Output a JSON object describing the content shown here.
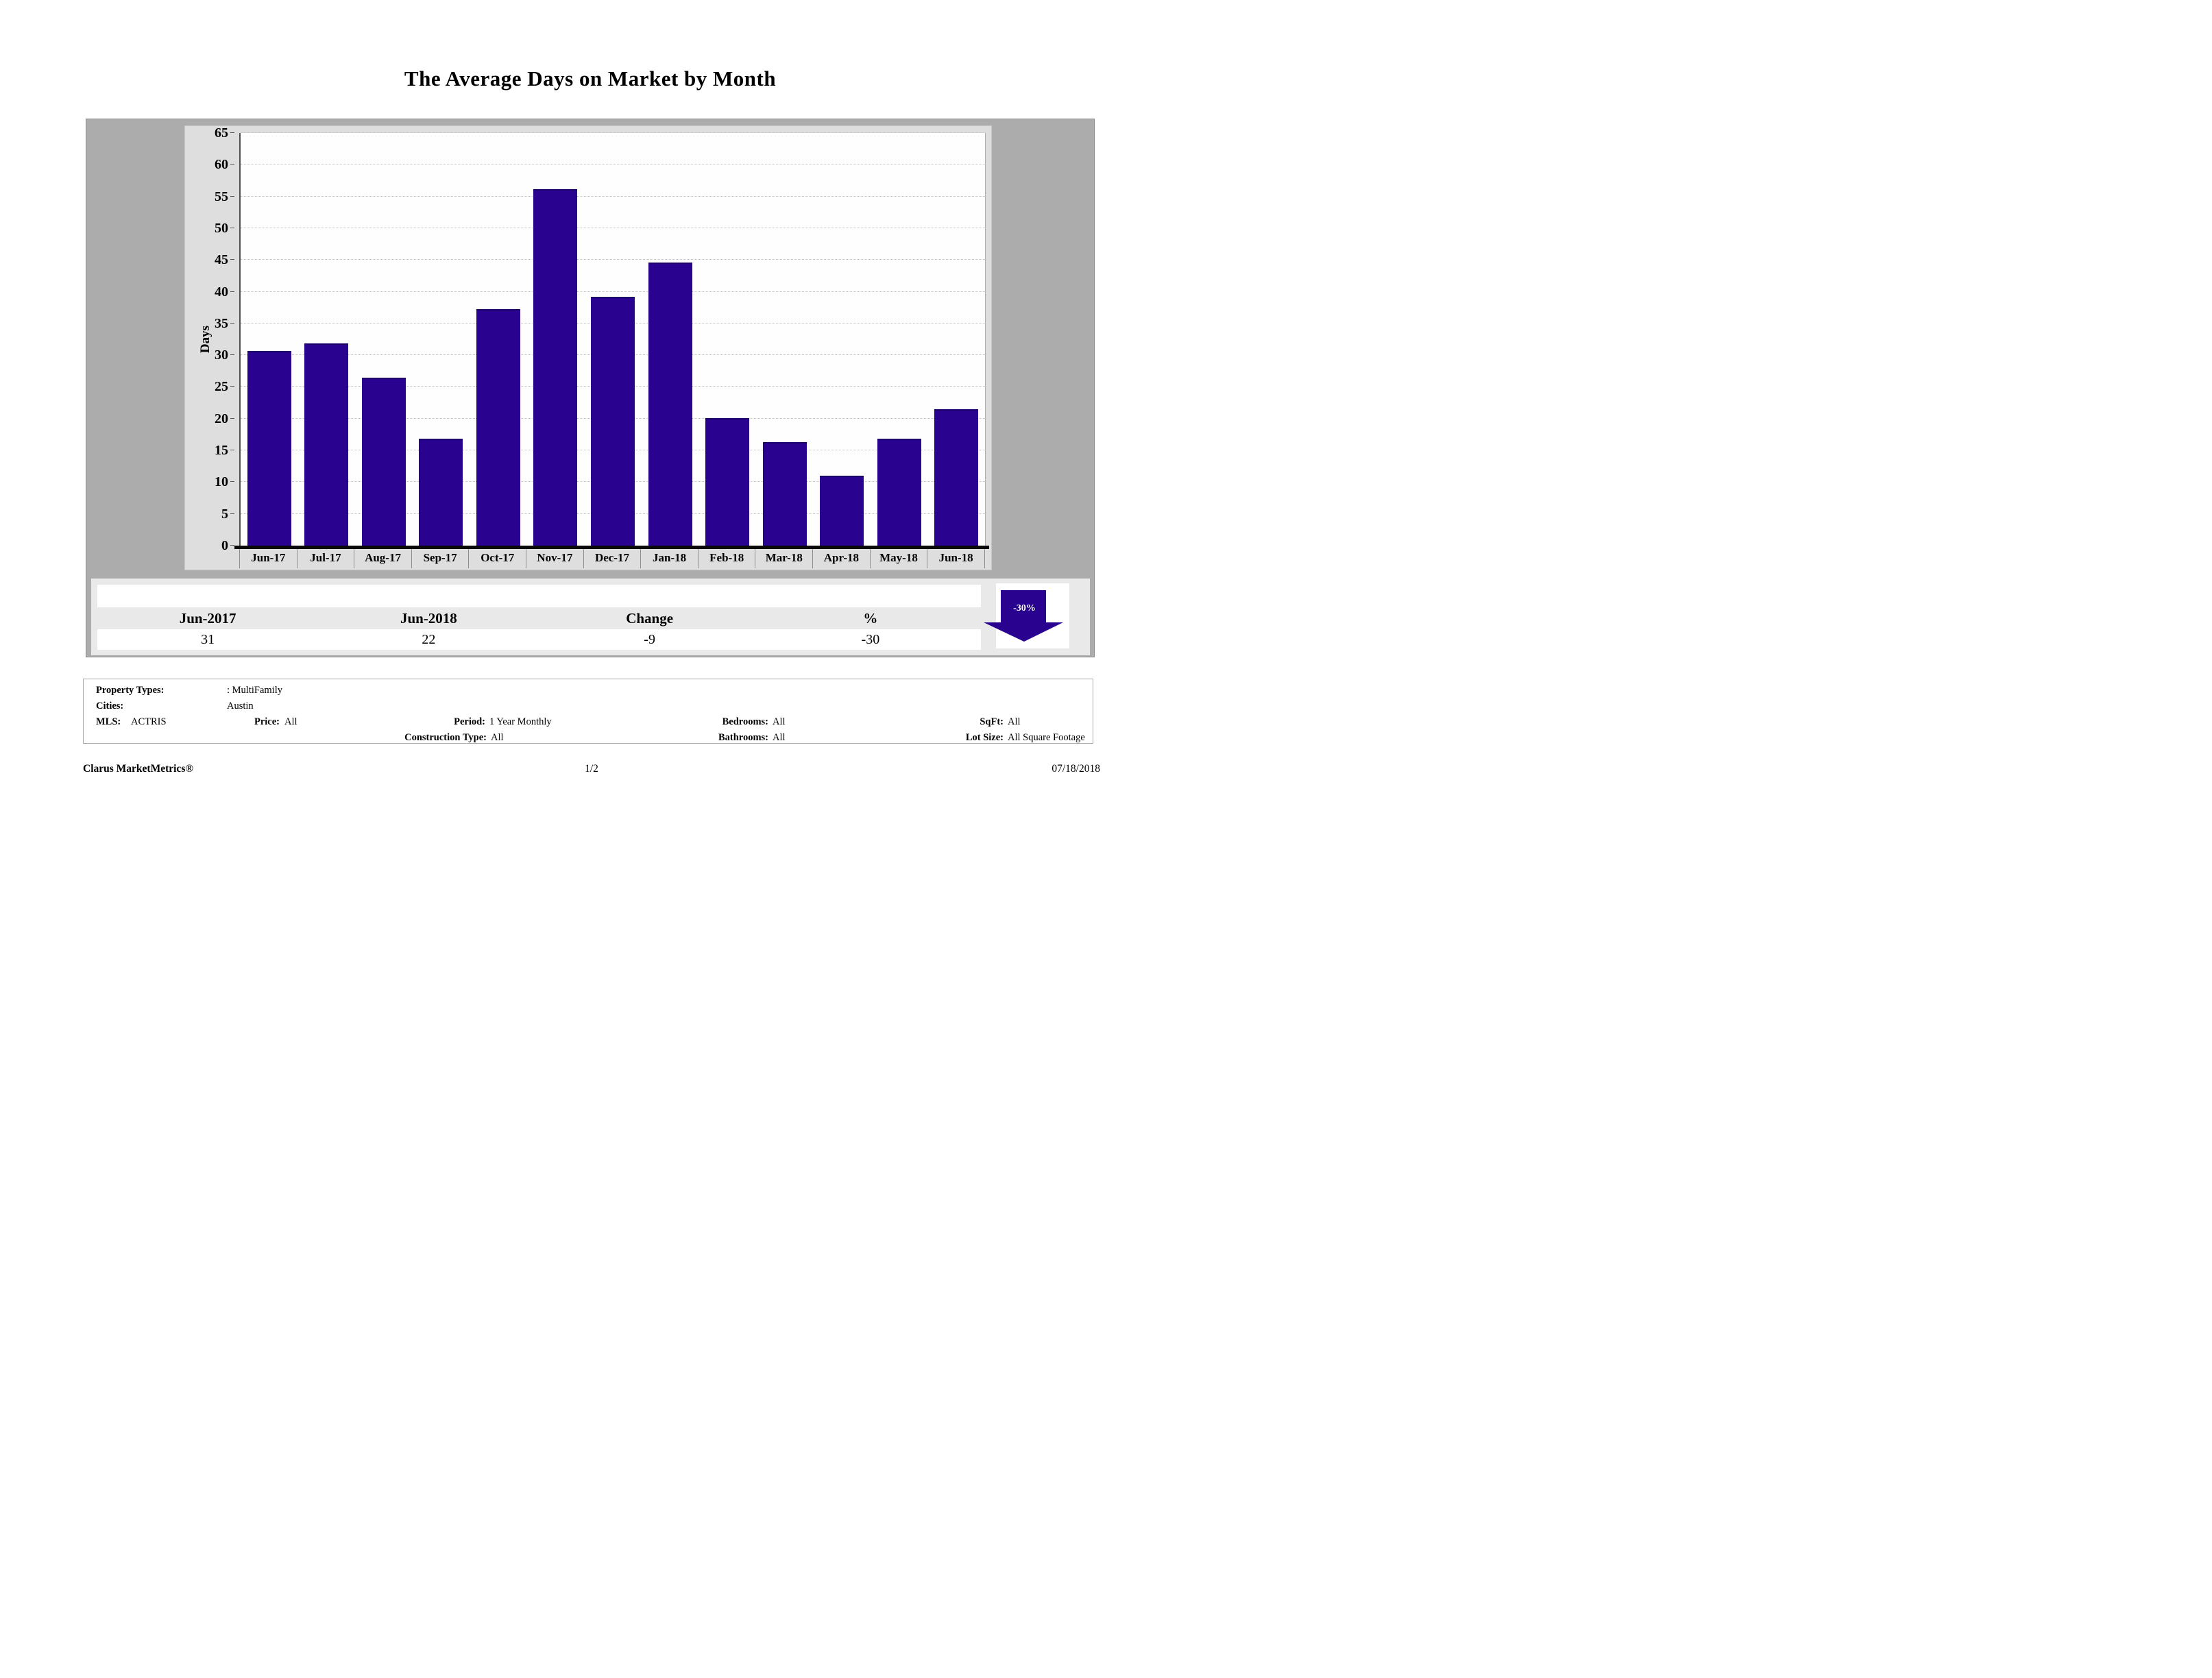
{
  "title": "The Average Days on Market by Month",
  "chart_data": {
    "type": "bar",
    "title": "The Average Days on Market by Month",
    "categories": [
      "Jun-17",
      "Jul-17",
      "Aug-17",
      "Sep-17",
      "Oct-17",
      "Nov-17",
      "Dec-17",
      "Jan-18",
      "Feb-18",
      "Mar-18",
      "Apr-18",
      "May-18",
      "Jun-18"
    ],
    "values": [
      30.7,
      31.8,
      26.5,
      16.8,
      37.2,
      56.2,
      39.2,
      44.6,
      20.1,
      16.3,
      11.0,
      16.8,
      21.5
    ],
    "xlabel": "",
    "ylabel": "Days",
    "ylim": [
      0,
      65
    ],
    "ytick_step": 5,
    "grid": "horizontal-dotted",
    "legend": "none",
    "bar_color": "#2a0290"
  },
  "summary_table": {
    "headers": [
      "Jun-2017",
      "Jun-2018",
      "Change",
      "%"
    ],
    "values": [
      "31",
      "22",
      "-9",
      "-30"
    ]
  },
  "trend_arrow": {
    "label": "-30%",
    "direction": "down",
    "color": "#2a0290"
  },
  "filters": {
    "property_types_label": "Property Types:",
    "property_types_value": ": MultiFamily",
    "cities_label": "Cities:",
    "cities_value": "Austin",
    "mls_label": "MLS:",
    "mls_value": "ACTRIS",
    "price_label": "Price:",
    "price_value": "All",
    "period_label": "Period:",
    "period_value": "1 Year Monthly",
    "bedrooms_label": "Bedrooms:",
    "bedrooms_value": "All",
    "sqft_label": "SqFt:",
    "sqft_value": "All",
    "construction_type_label": "Construction Type:",
    "construction_type_value": "All",
    "bathrooms_label": "Bathrooms:",
    "bathrooms_value": "All",
    "lot_size_label": "Lot Size:",
    "lot_size_value": "All Square Footage"
  },
  "footer": {
    "brand": "Clarus MarketMetrics®",
    "page": "1/2",
    "date": "07/18/2018"
  },
  "colors": {
    "bar": "#2a0290",
    "outer_panel": "#acacac",
    "chart_panel": "#dedede",
    "table_panel": "#e9e9e9",
    "plot_bg": "#fefefe",
    "gridline": "#c2c2c2",
    "axis": "#0a0a0a"
  }
}
